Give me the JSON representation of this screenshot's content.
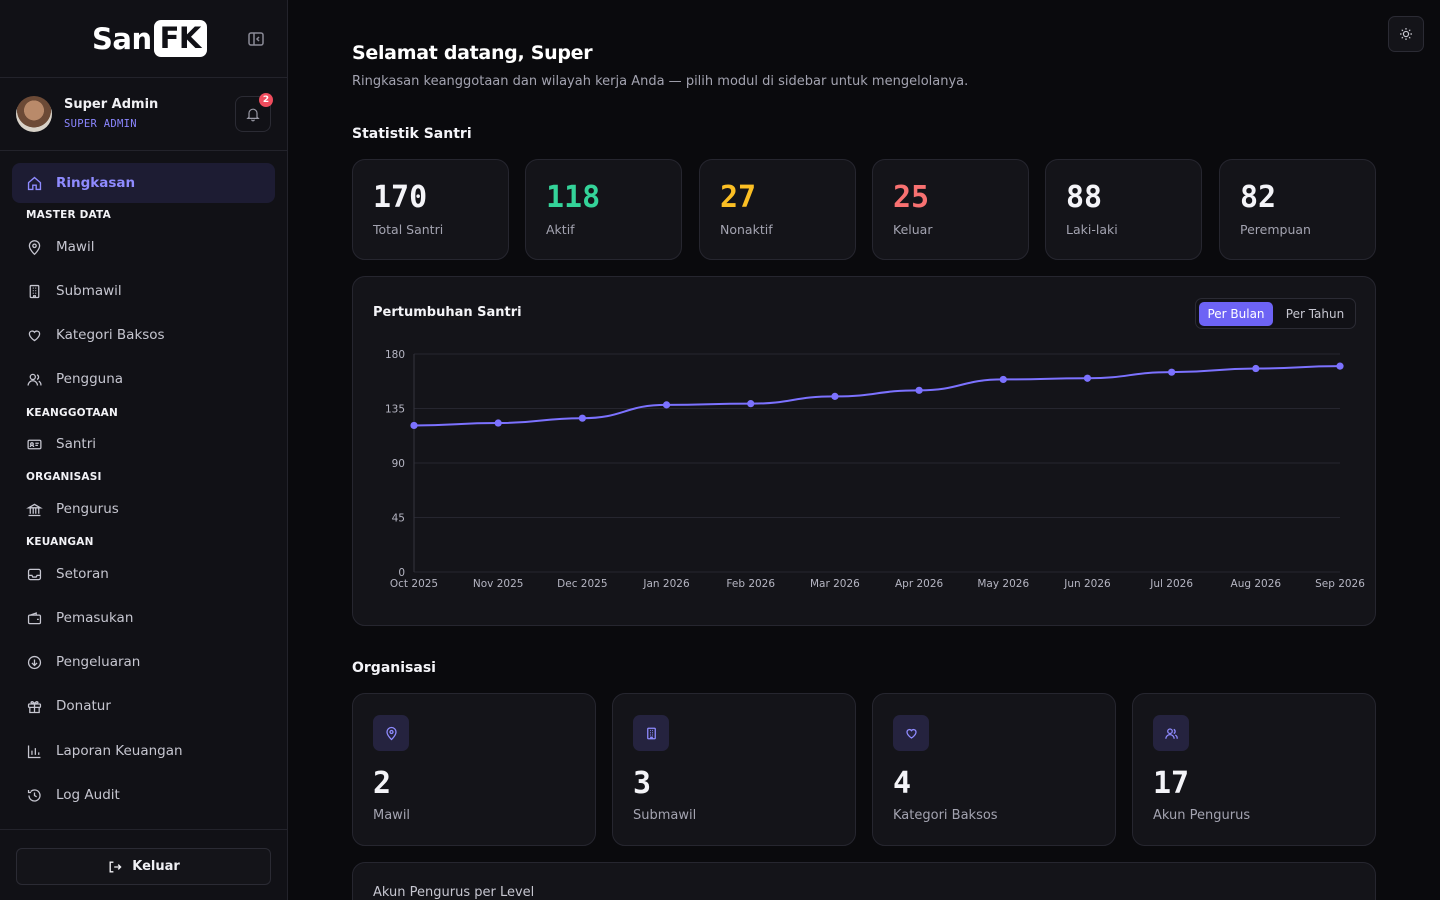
{
  "sidebar": {
    "brand_left": "San",
    "brand_right": "FK",
    "user": {
      "name": "Super Admin",
      "role": "SUPER ADMIN"
    },
    "notifications": "2",
    "items": [
      {
        "label": "Ringkasan",
        "icon": "home-icon"
      },
      {
        "label": "Mawil",
        "icon": "map-pin-icon"
      },
      {
        "label": "Submawil",
        "icon": "building-icon"
      },
      {
        "label": "Kategori Baksos",
        "icon": "heart-icon"
      },
      {
        "label": "Pengguna",
        "icon": "users-icon"
      },
      {
        "label": "Santri",
        "icon": "id-card-icon"
      },
      {
        "label": "Pengurus",
        "icon": "landmark-icon"
      },
      {
        "label": "Setoran",
        "icon": "inbox-icon"
      },
      {
        "label": "Pemasukan",
        "icon": "wallet-icon"
      },
      {
        "label": "Pengeluaran",
        "icon": "arrow-down-circle-icon"
      },
      {
        "label": "Donatur",
        "icon": "gift-icon"
      },
      {
        "label": "Laporan Keuangan",
        "icon": "bar-chart-icon"
      },
      {
        "label": "Log Audit",
        "icon": "history-icon"
      }
    ],
    "sections": [
      "MASTER DATA",
      "KEANGGOTAAN",
      "ORGANISASI",
      "KEUANGAN"
    ],
    "logout_label": "Keluar"
  },
  "header": {
    "welcome": "Selamat datang, Super",
    "subtitle": "Ringkasan keanggotaan dan wilayah kerja Anda — pilih modul di sidebar untuk mengelolanya."
  },
  "stats": {
    "title": "Statistik Santri",
    "cards": [
      {
        "value": "170",
        "label": "Total Santri",
        "color": "#f4f4f8"
      },
      {
        "value": "118",
        "label": "Aktif",
        "color": "#34d399"
      },
      {
        "value": "27",
        "label": "Nonaktif",
        "color": "#fbbf24"
      },
      {
        "value": "25",
        "label": "Keluar",
        "color": "#f87171"
      },
      {
        "value": "88",
        "label": "Laki-laki",
        "color": "#f4f4f8"
      },
      {
        "value": "82",
        "label": "Perempuan",
        "color": "#f4f4f8"
      }
    ]
  },
  "growth": {
    "title": "Pertumbuhan Santri",
    "toggle_active": "Per Bulan",
    "toggle_inactive": "Per Tahun"
  },
  "chart_data": {
    "type": "line",
    "title": "Pertumbuhan Santri",
    "categories": [
      "Oct 2025",
      "Nov 2025",
      "Dec 2025",
      "Jan 2026",
      "Feb 2026",
      "Mar 2026",
      "Apr 2026",
      "May 2026",
      "Jun 2026",
      "Jul 2026",
      "Aug 2026",
      "Sep 2026"
    ],
    "series": [
      {
        "values": [
          121,
          123,
          127,
          138,
          139,
          145,
          150,
          159,
          160,
          165,
          168,
          170
        ]
      }
    ],
    "yticks": [
      0,
      45,
      90,
      135,
      180
    ],
    "ylim": [
      0,
      180
    ],
    "grid": true,
    "color": "#7c72ff"
  },
  "organisasi": {
    "title": "Organisasi",
    "cards": [
      {
        "value": "2",
        "label": "Mawil",
        "icon": "map-pin-icon"
      },
      {
        "value": "3",
        "label": "Submawil",
        "icon": "building-icon"
      },
      {
        "value": "4",
        "label": "Kategori Baksos",
        "icon": "heart-icon"
      },
      {
        "value": "17",
        "label": "Akun Pengurus",
        "icon": "users-icon"
      }
    ]
  },
  "levels": {
    "title": "Akun Pengurus per Level"
  }
}
